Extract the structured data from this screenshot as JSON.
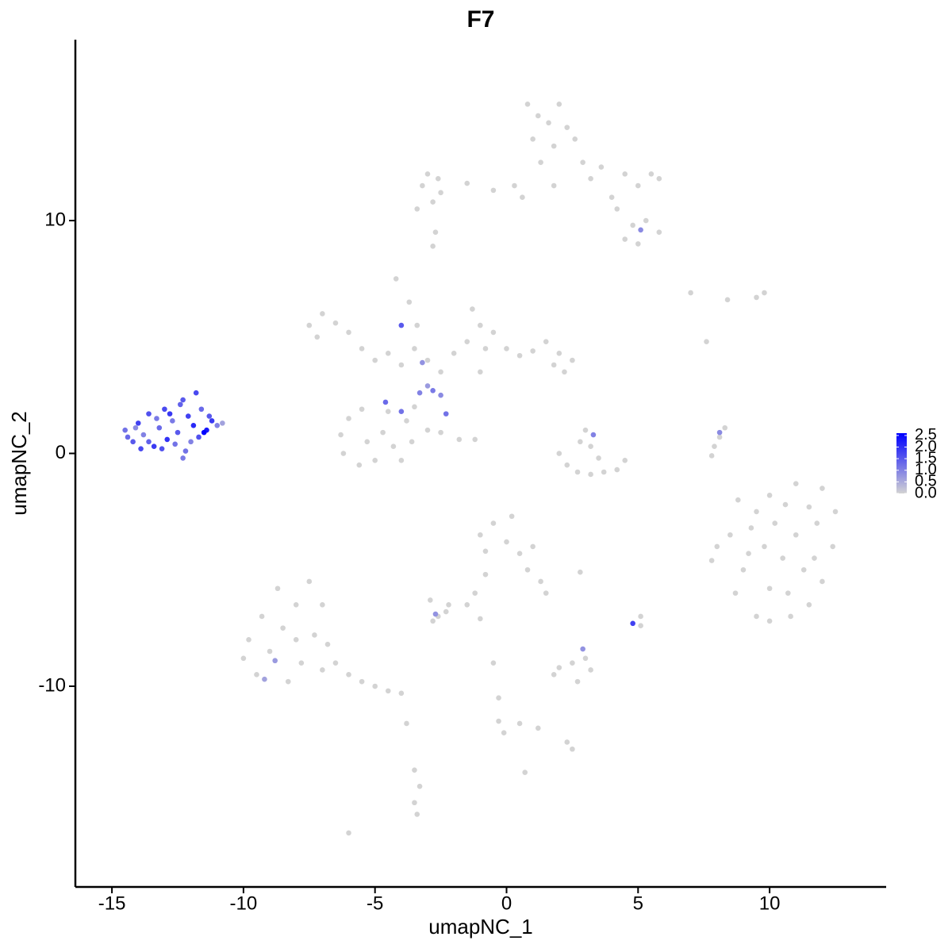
{
  "chart_data": {
    "type": "scatter",
    "title": "F7",
    "x_label": "umapNC_1",
    "y_label": "umapNC_2",
    "xlim": [
      -16.39,
      14.43
    ],
    "ylim": [
      -18.62,
      17.77
    ],
    "xticks": [
      -15,
      -10,
      -5,
      0,
      5,
      10
    ],
    "yticks": [
      -10,
      0,
      10
    ],
    "color_low": "#d3d3d3",
    "color_high": "#0000ff",
    "color_lim": [
      0,
      2.6
    ],
    "color_ticks": [
      {
        "value": 0,
        "label": "0.0"
      },
      0.5,
      {
        "value": 1,
        "label": "1.0"
      },
      1.5,
      {
        "value": 2,
        "label": "2.0"
      },
      2.5
    ],
    "x": [
      0.8,
      1.2,
      1.0,
      1.6,
      2.0,
      2.3,
      1.8,
      2.6,
      1.3,
      2.9,
      3.2,
      3.6,
      4.0,
      4.5,
      5.0,
      5.5,
      5.8,
      4.2,
      4.8,
      5.3,
      5.8,
      4.5,
      5.0,
      1.8,
      0.6,
      0.3,
      -0.5,
      -1.5,
      -2.6,
      -3.2,
      -3.0,
      -2.5,
      -2.8,
      -3.4,
      -2.7,
      -2.8,
      5.1,
      -7.5,
      -7.0,
      -6.5,
      -6.0,
      -7.2,
      -5.5,
      -5.0,
      -4.5,
      -4.0,
      -3.5,
      -3.0,
      -2.5,
      -3.7,
      -4.2,
      -3.4,
      -2.0,
      -1.5,
      -1.0,
      -1.3,
      -0.5,
      -0.8,
      0.0,
      0.5,
      1.0,
      1.5,
      2.0,
      1.8,
      2.5,
      2.2,
      -1.0,
      -6.0,
      -6.3,
      -6.2,
      -5.6,
      -5.0,
      -5.3,
      -4.7,
      -4.3,
      -4.0,
      -3.6,
      -3.8,
      -4.5,
      -5.5,
      -3.5,
      -3.0,
      -2.5,
      -1.8,
      -1.2,
      -4.6,
      -4.0,
      -3.3,
      -2.8,
      -2.3,
      -4.0,
      -3.2,
      -2.5,
      -3.0,
      2.0,
      2.3,
      2.7,
      3.2,
      3.7,
      4.2,
      4.5,
      2.8,
      3.2,
      3.5,
      3.0,
      3.3,
      7.8,
      7.9,
      8.1,
      8.3,
      8.1,
      7.0,
      8.4,
      9.5,
      9.8,
      7.6,
      8.8,
      8.5,
      9.0,
      8.7,
      9.5,
      10.0,
      10.8,
      11.5,
      12.0,
      12.4,
      12.5,
      12.0,
      11.0,
      10.0,
      9.5,
      10.2,
      11.0,
      11.8,
      10.5,
      9.8,
      11.3,
      10.0,
      9.2,
      11.7,
      10.7,
      9.3,
      10.6,
      11.5,
      8.0,
      7.8,
      -10.0,
      -9.5,
      -9.0,
      -8.5,
      -8.0,
      -8.7,
      -9.3,
      -9.8,
      -7.5,
      -7.0,
      -7.3,
      -7.8,
      -8.3,
      -7.0,
      -6.5,
      -6.0,
      -5.5,
      -5.0,
      -4.5,
      -4.0,
      -8.8,
      -9.2,
      -8.0,
      -6.8,
      -1.0,
      -0.5,
      0.0,
      0.5,
      1.0,
      0.2,
      -0.8,
      0.8,
      1.3,
      1.5,
      -0.8,
      -1.2,
      -1.5,
      -2.3,
      -2.6,
      -2.8,
      -2.7,
      -1.0,
      2.8,
      2.0,
      1.8,
      2.5,
      3.0,
      2.7,
      3.2,
      2.9,
      4.8,
      5.1,
      5.1,
      -0.5,
      -0.3,
      -0.3,
      -0.1,
      0.5,
      1.2,
      2.3,
      2.5,
      0.7,
      -3.8,
      -3.5,
      -3.3,
      -3.5,
      -3.4,
      -6.0,
      -2.9,
      -2.2,
      -14.5,
      -14.2,
      -14.0,
      -13.8,
      -13.6,
      -13.4,
      -13.2,
      -13.0,
      -12.9,
      -12.7,
      -12.5,
      -12.4,
      -12.2,
      -12.1,
      -11.9,
      -11.7,
      -11.6,
      -11.4,
      -11.2,
      -11.0,
      -10.8,
      -11.8,
      -12.3,
      -13.6,
      -14.4,
      -13.1,
      -12.6,
      -11.5,
      -12.8,
      -13.3,
      -14.1,
      -11.3,
      -12.0,
      -13.9,
      -12.3
    ],
    "y": [
      15.0,
      14.5,
      13.5,
      14.2,
      15.0,
      14.0,
      13.2,
      13.5,
      12.5,
      12.5,
      11.8,
      12.3,
      11.0,
      12.0,
      11.5,
      12.0,
      11.8,
      10.5,
      9.8,
      10.0,
      9.5,
      9.2,
      9.0,
      11.5,
      11.0,
      11.5,
      11.3,
      11.6,
      11.8,
      11.5,
      12.0,
      11.2,
      10.8,
      10.5,
      9.5,
      8.9,
      9.6,
      5.5,
      6.0,
      5.6,
      5.2,
      5.0,
      4.5,
      4.0,
      4.3,
      3.8,
      4.5,
      4.0,
      3.5,
      6.5,
      7.5,
      5.5,
      4.3,
      4.8,
      5.5,
      6.2,
      5.2,
      4.5,
      4.5,
      4.2,
      4.4,
      4.8,
      4.3,
      3.8,
      4.0,
      3.5,
      3.5,
      1.5,
      0.8,
      0.0,
      -0.5,
      -0.3,
      0.5,
      0.9,
      0.3,
      -0.3,
      0.5,
      1.4,
      1.8,
      1.9,
      2.0,
      1.0,
      0.9,
      0.6,
      0.6,
      2.2,
      1.8,
      2.6,
      2.7,
      1.7,
      5.5,
      3.9,
      2.5,
      2.9,
      0.0,
      -0.5,
      -0.8,
      -0.9,
      -0.8,
      -0.7,
      -0.3,
      0.5,
      0.3,
      -0.2,
      1.0,
      0.8,
      -0.1,
      0.3,
      0.7,
      1.1,
      0.9,
      6.9,
      6.6,
      6.7,
      6.9,
      4.8,
      -2.0,
      -3.5,
      -5.0,
      -6.0,
      -7.0,
      -7.2,
      -7.0,
      -6.5,
      -5.5,
      -4.0,
      -2.5,
      -1.5,
      -1.3,
      -1.8,
      -2.5,
      -3.0,
      -3.5,
      -3.0,
      -4.5,
      -4.0,
      -5.0,
      -5.8,
      -4.3,
      -4.5,
      -6.0,
      -3.2,
      -2.2,
      -2.3,
      -4.0,
      -4.6,
      -8.8,
      -9.5,
      -8.5,
      -7.5,
      -6.5,
      -5.8,
      -7.0,
      -8.0,
      -5.5,
      -6.5,
      -7.8,
      -9.0,
      -9.8,
      -9.3,
      -9.0,
      -9.5,
      -9.8,
      -10.0,
      -10.2,
      -10.3,
      -8.9,
      -9.7,
      -8.0,
      -8.2,
      -3.5,
      -3.0,
      -3.8,
      -4.3,
      -4.0,
      -2.7,
      -4.2,
      -5.0,
      -5.5,
      -6.0,
      -5.2,
      -6.0,
      -6.5,
      -6.8,
      -7.0,
      -7.2,
      -6.9,
      -7.1,
      -5.1,
      -9.2,
      -9.5,
      -9.0,
      -8.8,
      -9.8,
      -9.3,
      -8.4,
      -7.3,
      -7.0,
      -7.4,
      -9.0,
      -10.5,
      -11.5,
      -12.0,
      -11.6,
      -11.8,
      -12.4,
      -12.7,
      -13.7,
      -11.6,
      -13.6,
      -14.3,
      -15.0,
      -15.5,
      -16.3,
      -6.3,
      -6.5,
      1.0,
      0.5,
      1.3,
      0.8,
      1.7,
      0.3,
      1.1,
      1.9,
      0.6,
      1.4,
      0.9,
      2.1,
      0.1,
      1.6,
      1.2,
      0.7,
      1.9,
      1.0,
      1.4,
      1.2,
      1.3,
      2.6,
      2.3,
      0.5,
      0.7,
      0.2,
      0.4,
      0.9,
      1.7,
      1.5,
      1.1,
      1.6,
      0.5,
      0.2,
      -0.2
    ],
    "values": [
      0,
      0,
      0,
      0,
      0,
      0,
      0,
      0,
      0,
      0,
      0,
      0,
      0,
      0,
      0,
      0,
      0,
      0,
      0,
      0,
      0,
      0,
      0,
      0,
      0,
      0,
      0,
      0,
      0,
      0,
      0,
      0,
      0,
      0,
      0,
      0,
      0.9,
      0,
      0,
      0,
      0,
      0,
      0,
      0,
      0,
      0,
      0,
      0,
      0,
      0,
      0,
      0,
      0,
      0,
      0,
      0,
      0,
      0,
      0,
      0,
      0,
      0,
      0,
      0,
      0,
      0,
      0,
      0,
      0,
      0,
      0,
      0,
      0,
      0,
      0,
      0,
      0,
      0,
      0,
      0,
      0,
      0,
      0,
      0,
      0,
      1.3,
      1.2,
      1.0,
      1.1,
      1.2,
      1.5,
      0.8,
      0.9,
      0.7,
      0,
      0,
      0,
      0,
      0,
      0,
      0,
      0,
      0,
      0,
      0,
      1.0,
      0,
      0,
      0,
      0,
      0.9,
      0,
      0,
      0,
      0,
      0,
      0,
      0,
      0,
      0,
      0,
      0,
      0,
      0,
      0,
      0,
      0,
      0,
      0,
      0,
      0,
      0,
      0,
      0,
      0,
      0,
      0,
      0,
      0,
      0,
      0,
      0,
      0,
      0,
      0,
      0,
      0,
      0,
      0,
      0,
      0,
      0,
      0,
      0,
      0,
      0,
      0,
      0,
      0,
      0,
      0,
      0,
      0,
      0,
      0,
      0,
      0.7,
      0.6,
      0,
      0,
      0,
      0,
      0,
      0,
      0,
      0,
      0,
      0,
      0,
      0,
      0,
      0,
      0,
      0,
      0,
      0,
      0.8,
      0,
      0,
      0,
      0,
      0,
      0,
      0,
      0,
      0.8,
      1.8,
      0,
      0,
      0,
      0,
      0,
      0,
      0,
      0,
      0,
      0,
      0,
      0,
      0,
      0,
      0,
      0,
      0,
      0,
      0,
      1.2,
      1.5,
      1.8,
      1.0,
      1.6,
      1.9,
      1.3,
      1.7,
      2.0,
      1.1,
      1.5,
      1.4,
      1.2,
      1.8,
      2.1,
      1.6,
      1.3,
      2.3,
      1.9,
      1.0,
      0.6,
      1.7,
      1.5,
      1.4,
      1.3,
      1.6,
      1.2,
      2.6,
      1.9,
      1.1,
      0.9,
      1.5,
      1.0,
      1.7,
      1.1
    ]
  }
}
